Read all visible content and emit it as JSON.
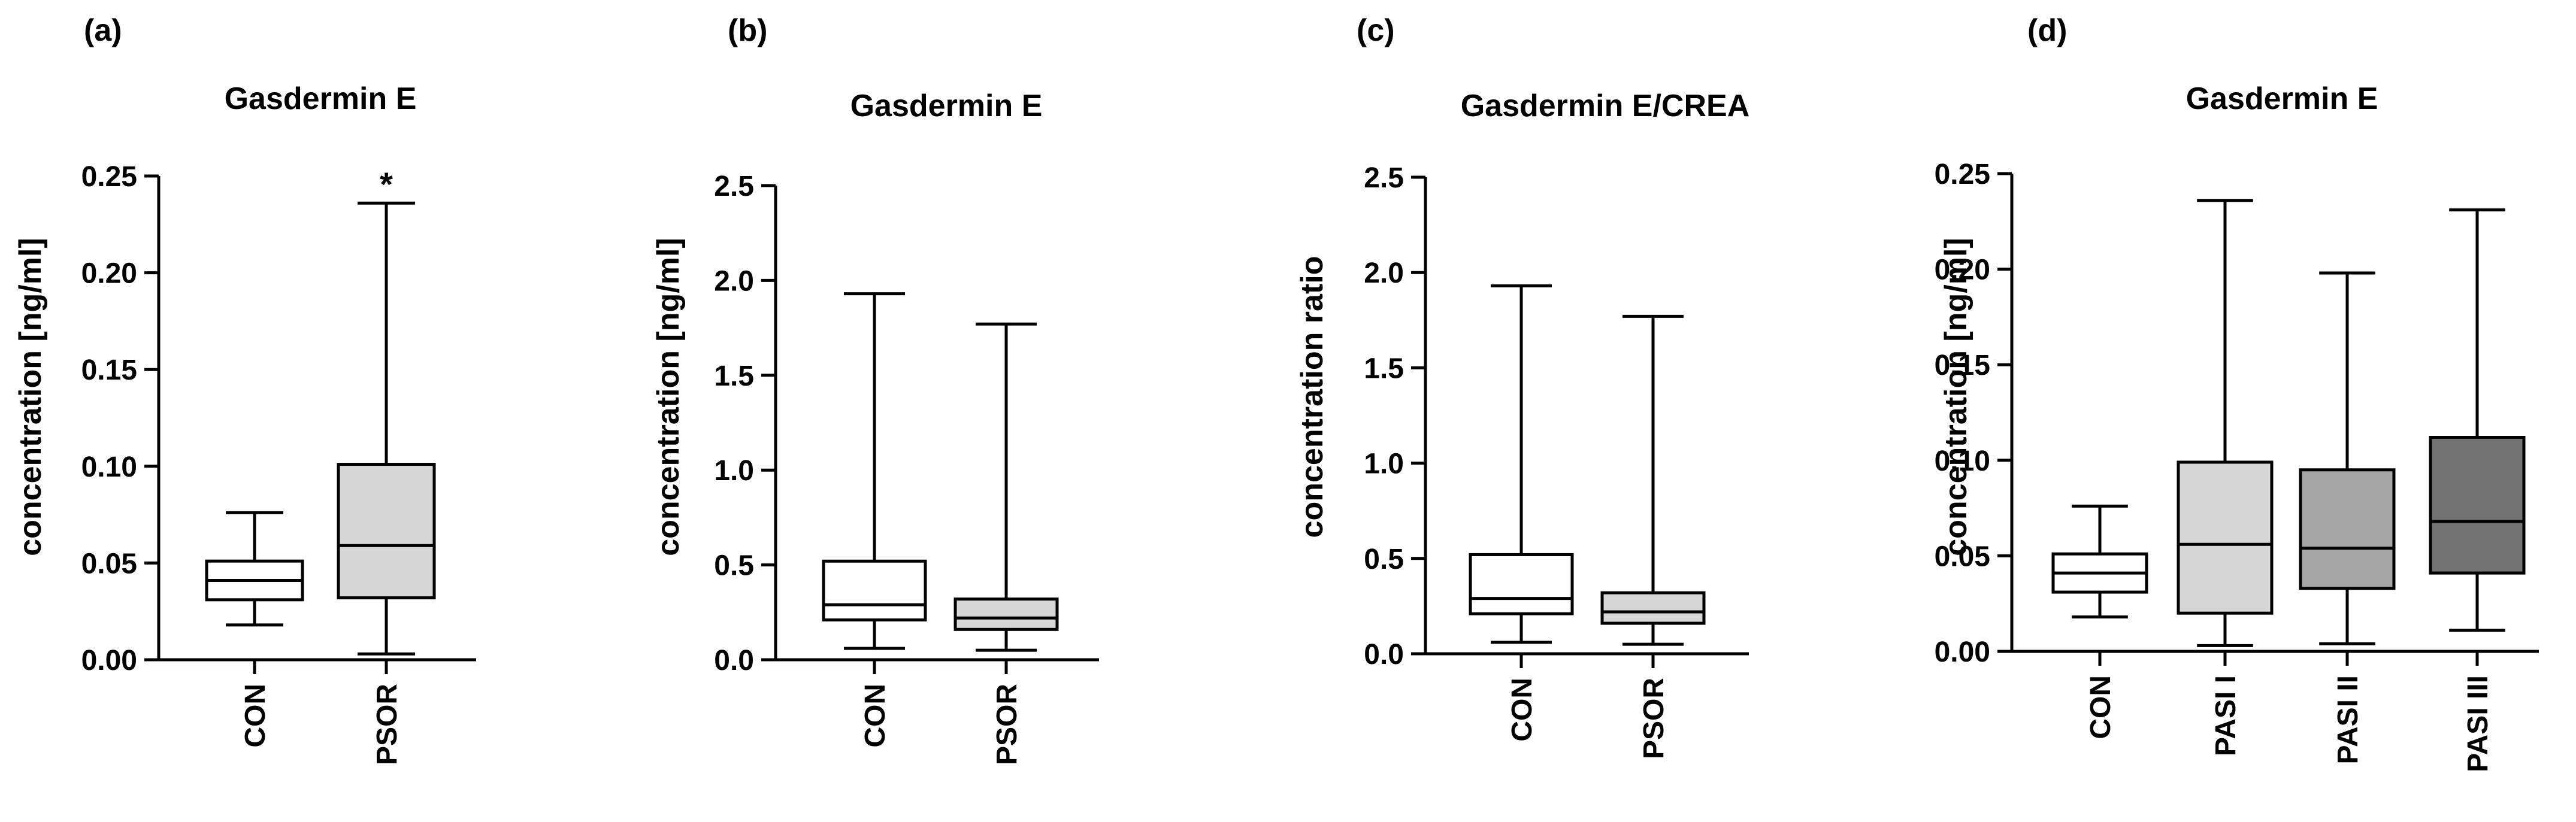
{
  "chart_data": [
    {
      "type": "box",
      "panel_label": "(a)",
      "title": "Gasdermin E",
      "ylabel": "concentration [ng/ml]",
      "ylim": [
        0,
        0.25
      ],
      "yticks": [
        "0.00",
        "0.05",
        "0.10",
        "0.15",
        "0.20",
        "0.25"
      ],
      "categories": [
        "CON",
        "PSOR"
      ],
      "boxes": [
        {
          "name": "CON",
          "min": 0.018,
          "q1": 0.031,
          "median": 0.041,
          "q3": 0.051,
          "max": 0.076,
          "fill": "#ffffff"
        },
        {
          "name": "PSOR",
          "min": 0.003,
          "q1": 0.032,
          "median": 0.059,
          "q3": 0.101,
          "max": 0.236,
          "fill": "#d6d6d6"
        }
      ],
      "annotations": [
        {
          "category": "PSOR",
          "text": "*"
        }
      ]
    },
    {
      "type": "box",
      "panel_label": "(b)",
      "title": "Gasdermin E",
      "ylabel": "concentration [ng/ml]",
      "ylim": [
        0,
        2.5
      ],
      "yticks": [
        "0.0",
        "0.5",
        "1.0",
        "1.5",
        "2.0",
        "2.5"
      ],
      "categories": [
        "CON",
        "PSOR"
      ],
      "boxes": [
        {
          "name": "CON",
          "min": 0.06,
          "q1": 0.21,
          "median": 0.29,
          "q3": 0.52,
          "max": 1.93,
          "fill": "#ffffff"
        },
        {
          "name": "PSOR",
          "min": 0.05,
          "q1": 0.16,
          "median": 0.22,
          "q3": 0.32,
          "max": 1.77,
          "fill": "#d6d6d6"
        }
      ],
      "annotations": []
    },
    {
      "type": "box",
      "panel_label": "(c)",
      "title": "Gasdermin E/CREA",
      "ylabel": "concentration ratio",
      "ylim": [
        0,
        2.5
      ],
      "yticks": [
        "0.0",
        "0.5",
        "1.0",
        "1.5",
        "2.0",
        "2.5"
      ],
      "categories": [
        "CON",
        "PSOR"
      ],
      "boxes": [
        {
          "name": "CON",
          "min": 0.06,
          "q1": 0.21,
          "median": 0.29,
          "q3": 0.52,
          "max": 1.93,
          "fill": "#ffffff"
        },
        {
          "name": "PSOR",
          "min": 0.05,
          "q1": 0.16,
          "median": 0.22,
          "q3": 0.32,
          "max": 1.77,
          "fill": "#d6d6d6"
        }
      ],
      "annotations": []
    },
    {
      "type": "box",
      "panel_label": "(d)",
      "title": "Gasdermin E",
      "ylabel": "concentration [ng/ml]",
      "ylim": [
        0,
        0.25
      ],
      "yticks": [
        "0.00",
        "0.05",
        "0.10",
        "0.15",
        "0.20",
        "0.25"
      ],
      "categories": [
        "CON",
        "PASI I",
        "PASI II",
        "PASI III"
      ],
      "boxes": [
        {
          "name": "CON",
          "min": 0.018,
          "q1": 0.031,
          "median": 0.041,
          "q3": 0.051,
          "max": 0.076,
          "fill": "#ffffff"
        },
        {
          "name": "PASI I",
          "min": 0.003,
          "q1": 0.02,
          "median": 0.056,
          "q3": 0.099,
          "max": 0.236,
          "fill": "#d6d6d6"
        },
        {
          "name": "PASI II",
          "min": 0.004,
          "q1": 0.033,
          "median": 0.054,
          "q3": 0.095,
          "max": 0.198,
          "fill": "#a6a6a6"
        },
        {
          "name": "PASI III",
          "min": 0.011,
          "q1": 0.041,
          "median": 0.068,
          "q3": 0.112,
          "max": 0.231,
          "fill": "#737373"
        }
      ],
      "annotations": []
    }
  ]
}
